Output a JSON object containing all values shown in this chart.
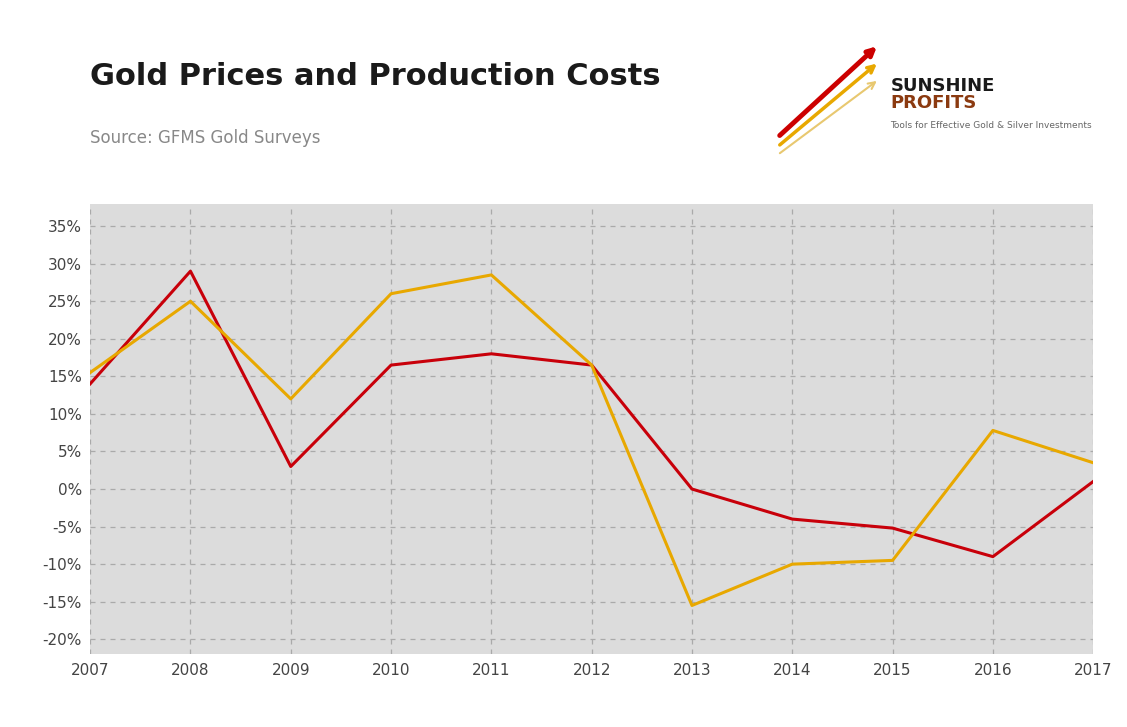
{
  "title": "Gold Prices and Production Costs",
  "source": "Source: GFMS Gold Surveys",
  "years": [
    2007,
    2008,
    2009,
    2010,
    2011,
    2012,
    2013,
    2014,
    2015,
    2016,
    2017
  ],
  "gold_prices": [
    0.14,
    0.29,
    0.03,
    0.165,
    0.18,
    0.165,
    0.0,
    -0.04,
    -0.052,
    -0.09,
    0.01
  ],
  "cash_costs": [
    0.155,
    0.25,
    0.12,
    0.26,
    0.285,
    0.165,
    -0.155,
    -0.1,
    -0.095,
    0.078,
    0.035
  ],
  "gold_color": "#c8000a",
  "cash_color": "#e8a800",
  "ylim": [
    -0.22,
    0.38
  ],
  "yticks": [
    -0.2,
    -0.15,
    -0.1,
    -0.05,
    0.0,
    0.05,
    0.1,
    0.15,
    0.2,
    0.25,
    0.3,
    0.35
  ],
  "background_color": "#dcdcdc",
  "fig_background": "#ffffff",
  "grid_color": "#aaaaaa",
  "line_width": 2.2,
  "title_fontsize": 22,
  "source_fontsize": 12
}
